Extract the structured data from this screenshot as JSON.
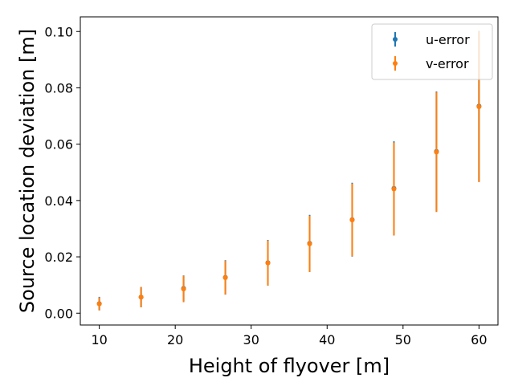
{
  "chart_data": {
    "type": "scatter",
    "title": "",
    "xlabel": "Height of flyover [m]",
    "ylabel": "Source location deviation [m]",
    "xlim": [
      7.5,
      62.5
    ],
    "ylim": [
      -0.0042,
      0.1052
    ],
    "xticks": [
      10,
      20,
      30,
      40,
      50,
      60
    ],
    "xtick_labels": [
      "10",
      "20",
      "30",
      "40",
      "50",
      "60"
    ],
    "yticks": [
      0.0,
      0.02,
      0.04,
      0.06,
      0.08,
      0.1
    ],
    "ytick_labels": [
      "0.00",
      "0.02",
      "0.04",
      "0.06",
      "0.08",
      "0.10"
    ],
    "grid": false,
    "legend_position": "top-right",
    "x": [
      10.0,
      15.5,
      21.1,
      26.6,
      32.2,
      37.7,
      43.3,
      48.8,
      54.4,
      60.0
    ],
    "series": [
      {
        "name": "u-error",
        "color": "#1f77b4",
        "values": [
          0.0034,
          0.0057,
          0.0088,
          0.0127,
          0.0179,
          0.0248,
          0.0332,
          0.0443,
          0.0574,
          0.0735
        ],
        "errors": [
          0.0024,
          0.0036,
          0.0046,
          0.0061,
          0.0081,
          0.0101,
          0.0131,
          0.0167,
          0.0213,
          0.0267
        ]
      },
      {
        "name": "v-error",
        "color": "#ff7f0e",
        "values": [
          0.0033,
          0.0057,
          0.0086,
          0.0126,
          0.0178,
          0.0246,
          0.0331,
          0.0441,
          0.0572,
          0.0733
        ],
        "errors": [
          0.0023,
          0.0036,
          0.0047,
          0.006,
          0.008,
          0.01,
          0.0129,
          0.0165,
          0.0213,
          0.0268
        ]
      }
    ]
  }
}
